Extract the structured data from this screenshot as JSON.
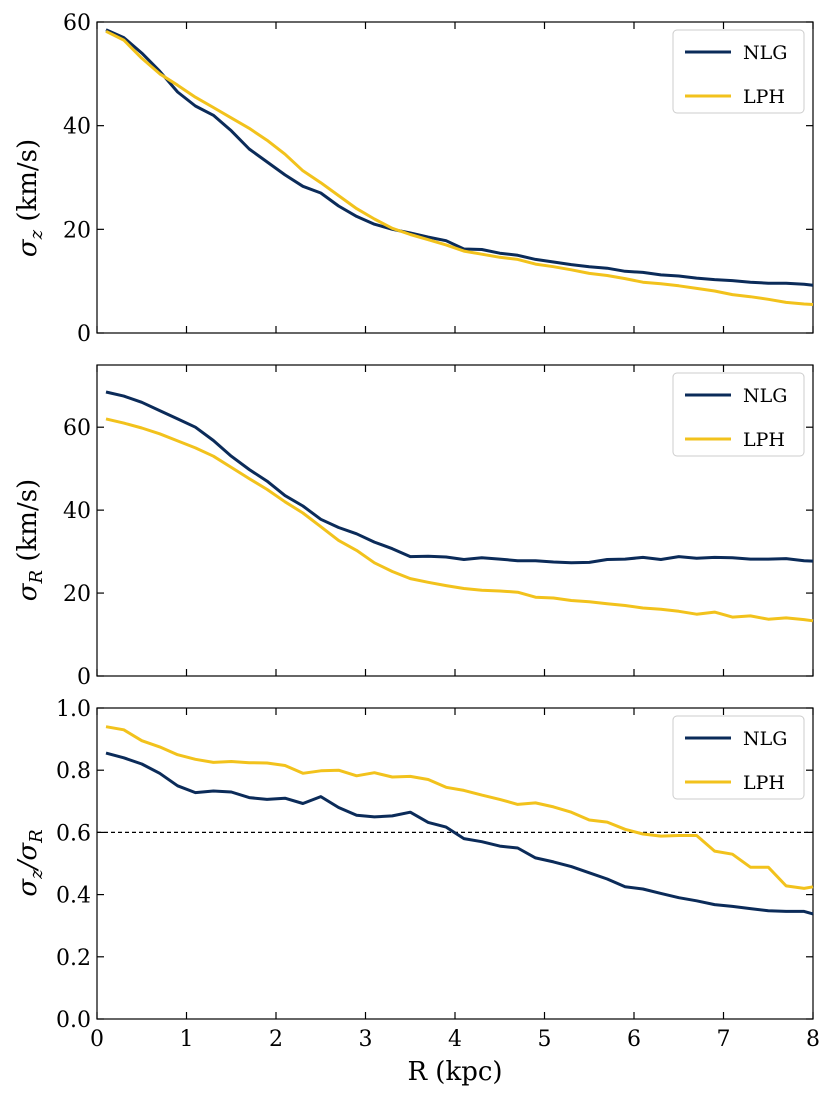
{
  "colors": {
    "NLG": "#0b2b59",
    "LPH": "#f2c21c",
    "refline": "#000000"
  },
  "chart_data": [
    {
      "type": "line",
      "panel": "top",
      "ylabel": "σz (km/s)",
      "xlim": [
        0,
        8
      ],
      "ylim": [
        0,
        60
      ],
      "yticks": [
        "0",
        "20",
        "40",
        "60"
      ],
      "legend": {
        "position": "top-right",
        "entries": [
          "NLG",
          "LPH"
        ]
      },
      "series": [
        {
          "name": "NLG",
          "x": [
            0.1,
            0.3,
            0.5,
            0.7,
            0.9,
            1.1,
            1.3,
            1.5,
            1.7,
            1.9,
            2.1,
            2.3,
            2.5,
            2.7,
            2.9,
            3.1,
            3.3,
            3.5,
            3.7,
            3.9,
            4.1,
            4.3,
            4.5,
            4.7,
            4.9,
            5.1,
            5.3,
            5.5,
            5.7,
            5.9,
            6.1,
            6.3,
            6.5,
            6.7,
            6.9,
            7.1,
            7.3,
            7.5,
            7.7,
            7.9,
            8.0
          ],
          "y": [
            58.5,
            57,
            54,
            50.5,
            46.5,
            43.8,
            42,
            39,
            35.5,
            33,
            30.5,
            28.3,
            27,
            24.5,
            22.5,
            21,
            20,
            19.3,
            18.5,
            17.8,
            16.2,
            16.1,
            15.4,
            15,
            14.2,
            13.7,
            13.2,
            12.8,
            12.5,
            11.9,
            11.7,
            11.2,
            11,
            10.6,
            10.3,
            10.1,
            9.8,
            9.6,
            9.6,
            9.4,
            9.2
          ]
        },
        {
          "name": "LPH",
          "x": [
            0.1,
            0.3,
            0.5,
            0.7,
            0.9,
            1.1,
            1.3,
            1.5,
            1.7,
            1.9,
            2.1,
            2.3,
            2.5,
            2.7,
            2.9,
            3.1,
            3.3,
            3.5,
            3.7,
            3.9,
            4.1,
            4.3,
            4.5,
            4.7,
            4.9,
            5.1,
            5.3,
            5.5,
            5.7,
            5.9,
            6.1,
            6.3,
            6.5,
            6.7,
            6.9,
            7.1,
            7.3,
            7.5,
            7.7,
            7.9,
            8.0
          ],
          "y": [
            58.2,
            56.5,
            53,
            50,
            47.8,
            45.5,
            43.5,
            41.5,
            39.5,
            37.2,
            34.5,
            31.3,
            29,
            26.5,
            24,
            22,
            20.2,
            19,
            18,
            17,
            15.8,
            15.2,
            14.6,
            14.2,
            13.3,
            12.8,
            12.2,
            11.5,
            11.1,
            10.5,
            9.8,
            9.5,
            9.1,
            8.6,
            8.1,
            7.4,
            7,
            6.5,
            5.9,
            5.6,
            5.5
          ]
        }
      ]
    },
    {
      "type": "line",
      "panel": "middle",
      "ylabel": "σR (km/s)",
      "xlim": [
        0,
        8
      ],
      "ylim": [
        0,
        75
      ],
      "yticks": [
        "0",
        "20",
        "40",
        "60"
      ],
      "legend": {
        "position": "top-right",
        "entries": [
          "NLG",
          "LPH"
        ]
      },
      "series": [
        {
          "name": "NLG",
          "x": [
            0.1,
            0.3,
            0.5,
            0.7,
            0.9,
            1.1,
            1.3,
            1.5,
            1.7,
            1.9,
            2.1,
            2.3,
            2.5,
            2.7,
            2.9,
            3.1,
            3.3,
            3.5,
            3.7,
            3.9,
            4.1,
            4.3,
            4.5,
            4.7,
            4.9,
            5.1,
            5.3,
            5.5,
            5.7,
            5.9,
            6.1,
            6.3,
            6.5,
            6.7,
            6.9,
            7.1,
            7.3,
            7.5,
            7.7,
            7.9,
            8.0
          ],
          "y": [
            68.5,
            67.5,
            66,
            64,
            62,
            60,
            56.8,
            53,
            49.8,
            47,
            43.5,
            41,
            37.8,
            35.8,
            34.3,
            32.3,
            30.7,
            28.8,
            28.9,
            28.7,
            28.1,
            28.5,
            28.2,
            27.8,
            27.8,
            27.5,
            27.3,
            27.4,
            28.1,
            28.2,
            28.6,
            28.1,
            28.8,
            28.4,
            28.6,
            28.5,
            28.2,
            28.2,
            28.3,
            27.8,
            27.7
          ]
        },
        {
          "name": "LPH",
          "x": [
            0.1,
            0.3,
            0.5,
            0.7,
            0.9,
            1.1,
            1.3,
            1.5,
            1.7,
            1.9,
            2.1,
            2.3,
            2.5,
            2.7,
            2.9,
            3.1,
            3.3,
            3.5,
            3.7,
            3.9,
            4.1,
            4.3,
            4.5,
            4.7,
            4.9,
            5.1,
            5.3,
            5.5,
            5.7,
            5.9,
            6.1,
            6.3,
            6.5,
            6.7,
            6.9,
            7.1,
            7.3,
            7.5,
            7.7,
            7.9,
            8.0
          ],
          "y": [
            62,
            61,
            59.8,
            58.4,
            56.7,
            55,
            53,
            50.3,
            47.6,
            45,
            42,
            39.3,
            36,
            32.7,
            30.3,
            27.3,
            25.2,
            23.5,
            22.6,
            21.8,
            21.1,
            20.7,
            20.5,
            20.2,
            19,
            18.8,
            18.2,
            17.9,
            17.4,
            17,
            16.4,
            16.1,
            15.6,
            14.9,
            15.4,
            14.2,
            14.5,
            13.7,
            14,
            13.6,
            13.3
          ]
        }
      ]
    },
    {
      "type": "line",
      "panel": "bottom",
      "ylabel": "σz/σR",
      "xlabel": "R (kpc)",
      "xlim": [
        0,
        8
      ],
      "ylim": [
        0.0,
        1.0
      ],
      "xticks": [
        "0",
        "1",
        "2",
        "3",
        "4",
        "5",
        "6",
        "7",
        "8"
      ],
      "yticks": [
        "0.0",
        "0.2",
        "0.4",
        "0.6",
        "0.8",
        "1.0"
      ],
      "hline": {
        "y": 0.6,
        "style": "dashed"
      },
      "legend": {
        "position": "top-right",
        "entries": [
          "NLG",
          "LPH"
        ]
      },
      "series": [
        {
          "name": "NLG",
          "x": [
            0.1,
            0.3,
            0.5,
            0.7,
            0.9,
            1.1,
            1.3,
            1.5,
            1.7,
            1.9,
            2.1,
            2.3,
            2.5,
            2.7,
            2.9,
            3.1,
            3.3,
            3.5,
            3.7,
            3.9,
            4.1,
            4.3,
            4.5,
            4.7,
            4.9,
            5.1,
            5.3,
            5.5,
            5.7,
            5.9,
            6.1,
            6.3,
            6.5,
            6.7,
            6.9,
            7.1,
            7.3,
            7.5,
            7.7,
            7.9,
            8.0
          ],
          "y": [
            0.855,
            0.84,
            0.82,
            0.79,
            0.75,
            0.728,
            0.733,
            0.73,
            0.712,
            0.706,
            0.71,
            0.693,
            0.715,
            0.68,
            0.655,
            0.65,
            0.653,
            0.665,
            0.632,
            0.617,
            0.58,
            0.57,
            0.556,
            0.55,
            0.518,
            0.505,
            0.49,
            0.47,
            0.45,
            0.425,
            0.418,
            0.404,
            0.39,
            0.38,
            0.368,
            0.362,
            0.355,
            0.348,
            0.346,
            0.346,
            0.338
          ]
        },
        {
          "name": "LPH",
          "x": [
            0.1,
            0.3,
            0.5,
            0.7,
            0.9,
            1.1,
            1.3,
            1.5,
            1.7,
            1.9,
            2.1,
            2.3,
            2.5,
            2.7,
            2.9,
            3.1,
            3.3,
            3.5,
            3.7,
            3.9,
            4.1,
            4.3,
            4.5,
            4.7,
            4.9,
            5.1,
            5.3,
            5.5,
            5.7,
            5.9,
            6.1,
            6.3,
            6.5,
            6.7,
            6.9,
            7.1,
            7.3,
            7.5,
            7.7,
            7.9,
            8.0
          ],
          "y": [
            0.94,
            0.93,
            0.895,
            0.875,
            0.85,
            0.835,
            0.825,
            0.828,
            0.824,
            0.823,
            0.815,
            0.79,
            0.798,
            0.8,
            0.782,
            0.792,
            0.778,
            0.78,
            0.77,
            0.745,
            0.735,
            0.72,
            0.706,
            0.69,
            0.695,
            0.682,
            0.665,
            0.64,
            0.633,
            0.61,
            0.595,
            0.588,
            0.59,
            0.59,
            0.54,
            0.53,
            0.488,
            0.488,
            0.428,
            0.42,
            0.425
          ]
        }
      ]
    }
  ]
}
